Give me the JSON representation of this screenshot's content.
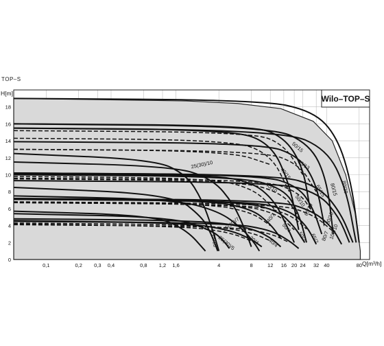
{
  "header": {
    "label": "TOP–S"
  },
  "chart_data": {
    "type": "line",
    "title": "Wilo–TOP–S",
    "xlabel": "Q[m³/h]",
    "ylabel": "H[m]",
    "x_scale": "log",
    "xlim": [
      0.05,
      100
    ],
    "ylim": [
      0,
      20
    ],
    "grid": true,
    "x_ticks": [
      0.1,
      0.2,
      0.3,
      0.4,
      0.8,
      1.2,
      1.6,
      4,
      8,
      12,
      16,
      20,
      24,
      32,
      40,
      80
    ],
    "x_tick_labels": [
      "0,1",
      "0,2",
      "0,3",
      "0,4",
      "0,8",
      "1,2",
      "1,6",
      "4",
      "8",
      "12",
      "16",
      "20",
      "24",
      "32",
      "40",
      "80"
    ],
    "y_ticks": [
      0,
      2,
      4,
      6,
      8,
      10,
      12,
      14,
      16,
      18
    ],
    "envelope": {
      "x": [
        0.05,
        2,
        6,
        15,
        30,
        45,
        60,
        75,
        82
      ],
      "y": [
        19,
        18.7,
        18.4,
        17.8,
        16.3,
        14,
        10,
        5,
        1
      ]
    },
    "series": [
      {
        "name": "25(30)/13",
        "style": "solid",
        "x": [
          0.05,
          1.0,
          2.0,
          2.8,
          3.5,
          4.0
        ],
        "y": [
          12.5,
          11.8,
          10,
          7,
          3.5,
          1
        ]
      },
      {
        "name": "",
        "style": "solid",
        "x": [
          0.05,
          1.5,
          2.8,
          3.4,
          3.9
        ],
        "y": [
          8.5,
          7.7,
          5,
          3,
          1
        ]
      },
      {
        "name": "",
        "style": "solid",
        "x": [
          0.05,
          1.0,
          2.0,
          3.0
        ],
        "y": [
          5.7,
          5.2,
          3.5,
          1
        ]
      },
      {
        "name": "25(30)/10",
        "style": "solid",
        "x": [
          0.05,
          1.5,
          3.5,
          5.5,
          7.0,
          8.0
        ],
        "y": [
          11.5,
          11,
          9.5,
          6.5,
          3.5,
          1.5
        ]
      },
      {
        "name": "25(30)/7",
        "style": "solid",
        "x": [
          0.05,
          1.5,
          4.0,
          6.5,
          8.5,
          9.5
        ],
        "y": [
          7.5,
          7.1,
          5.7,
          3.7,
          2,
          1
        ]
      },
      {
        "name": "25(30)/5",
        "style": "solid",
        "x": [
          0.05,
          1.5,
          3.5,
          4.5,
          5.0
        ],
        "y": [
          5.4,
          5,
          3.4,
          2.1,
          1.3
        ]
      },
      {
        "name": "30/4",
        "style": "solid",
        "x": [
          0.05,
          2.0,
          5.0,
          8.0,
          10.0
        ],
        "y": [
          4.6,
          4.3,
          3.5,
          2.4,
          1.5
        ]
      },
      {
        "name": "",
        "style": "dashed",
        "x": [
          0.05,
          2.0,
          5.0,
          8.0
        ],
        "y": [
          4.2,
          3.9,
          3.2,
          2.2
        ]
      },
      {
        "name": "40/10",
        "style": "solid",
        "x": [
          0.05,
          3.0,
          8.0,
          13.0,
          17.0,
          20.0
        ],
        "y": [
          10.1,
          10,
          9.2,
          7,
          4,
          2
        ]
      },
      {
        "name": "",
        "style": "dashed",
        "x": [
          0.05,
          3.0,
          8.0,
          13.0
        ],
        "y": [
          9.8,
          9.6,
          8.5,
          6
        ]
      },
      {
        "name": "40/7",
        "style": "solid",
        "x": [
          0.05,
          3.0,
          8.0,
          12.0,
          15.0
        ],
        "y": [
          7.2,
          7,
          6,
          4.2,
          2.5
        ]
      },
      {
        "name": "",
        "style": "dashed",
        "x": [
          0.05,
          3.0,
          8.0,
          12.0
        ],
        "y": [
          6.8,
          6.6,
          5.6,
          4
        ]
      },
      {
        "name": "40/4",
        "style": "solid",
        "x": [
          0.05,
          3.0,
          8.0,
          12.0,
          15.0
        ],
        "y": [
          4.8,
          4.6,
          3.7,
          2.6,
          1.5
        ]
      },
      {
        "name": "",
        "style": "dashed",
        "x": [
          0.05,
          3.0,
          8.0,
          12.0
        ],
        "y": [
          4.3,
          4.1,
          3.2,
          2.2
        ]
      },
      {
        "name": "40/15",
        "style": "solid",
        "x": [
          0.05,
          5.0,
          12.0,
          18.0,
          22.0
        ],
        "y": [
          15.5,
          15.3,
          13.8,
          9,
          3.5
        ]
      },
      {
        "name": "",
        "style": "dashed",
        "x": [
          0.05,
          5.0,
          12.0,
          18.0
        ],
        "y": [
          14.3,
          14.1,
          12.5,
          8
        ]
      },
      {
        "name": "",
        "style": "dashed",
        "x": [
          0.05,
          5.0,
          12.0
        ],
        "y": [
          13,
          12.8,
          11.2
        ]
      },
      {
        "name": "50/10",
        "style": "solid",
        "x": [
          0.05,
          6.0,
          16.0,
          22.0,
          26.0
        ],
        "y": [
          10,
          9.8,
          8.4,
          5.5,
          2
        ]
      },
      {
        "name": "",
        "style": "dashed",
        "x": [
          0.05,
          6.0,
          16.0,
          22.0
        ],
        "y": [
          9.5,
          9.3,
          7.8,
          5
        ]
      },
      {
        "name": "50/4",
        "style": "solid",
        "x": [
          0.05,
          5.0,
          12.0,
          18.0,
          22.0
        ],
        "y": [
          4.5,
          4.3,
          3.5,
          2.2,
          1.3
        ]
      },
      {
        "name": "",
        "style": "dashed",
        "x": [
          0.05,
          5.0,
          12.0,
          18.0
        ],
        "y": [
          4.1,
          3.9,
          3.1,
          2
        ]
      },
      {
        "name": "50/7",
        "style": "solid",
        "x": [
          0.05,
          6.0,
          14.0,
          20.0,
          25.0
        ],
        "y": [
          7.1,
          6.9,
          5.8,
          3.9,
          2
        ]
      },
      {
        "name": "",
        "style": "dashed",
        "x": [
          0.05,
          6.0,
          14.0,
          20.0
        ],
        "y": [
          6.7,
          6.5,
          5.4,
          3.5
        ]
      },
      {
        "name": "50/15",
        "style": "solid",
        "x": [
          0.05,
          8.0,
          16.0,
          24.0,
          28.0
        ],
        "y": [
          16,
          15.8,
          14.5,
          11,
          6
        ]
      },
      {
        "name": "",
        "style": "dashed",
        "x": [
          0.05,
          8.0,
          16.0,
          24.0
        ],
        "y": [
          15.2,
          15,
          13.6,
          10
        ]
      },
      {
        "name": "65/13",
        "style": "solid",
        "x": [
          0.05,
          10.0,
          22.0,
          32.0,
          38.0
        ],
        "y": [
          13.9,
          13.7,
          12.2,
          9,
          4
        ]
      },
      {
        "name": "",
        "style": "dashed",
        "x": [
          0.05,
          10.0,
          22.0,
          32.0
        ],
        "y": [
          13,
          12.8,
          11.3,
          8
        ]
      },
      {
        "name": "65/15",
        "style": "solid",
        "x": [
          0.05,
          12.0,
          28.0,
          40.0,
          46.0
        ],
        "y": [
          16,
          15.7,
          13.6,
          9.5,
          3
        ]
      },
      {
        "name": "65/10",
        "style": "solid",
        "x": [
          0.05,
          10.0,
          22.0,
          30.0,
          36.0
        ],
        "y": [
          10.2,
          10,
          8.6,
          6,
          3
        ]
      },
      {
        "name": "",
        "style": "dashed",
        "x": [
          0.05,
          10.0,
          22.0,
          30.0
        ],
        "y": [
          9.6,
          9.4,
          8,
          5.5
        ]
      },
      {
        "name": "65/7",
        "style": "solid",
        "x": [
          0.05,
          8.0,
          18.0,
          26.0,
          32.0
        ],
        "y": [
          7.1,
          6.9,
          5.8,
          4,
          1.8
        ]
      },
      {
        "name": "",
        "style": "dashed",
        "x": [
          0.05,
          8.0,
          18.0,
          26.0
        ],
        "y": [
          6.7,
          6.5,
          5.4,
          3.6
        ]
      },
      {
        "name": "80/15",
        "style": "solid",
        "x": [
          0.05,
          16.0,
          40.0,
          60.0,
          75.0
        ],
        "y": [
          15.5,
          15.2,
          13,
          8.5,
          2
        ]
      },
      {
        "name": "80/10",
        "style": "solid",
        "x": [
          0.05,
          14.0,
          34.0,
          54.0,
          70.0
        ],
        "y": [
          10.2,
          10,
          8.6,
          5.5,
          2
        ]
      },
      {
        "name": "100/10",
        "style": "solid",
        "x": [
          0.05,
          14.0,
          34.0,
          52.0,
          65.0
        ],
        "y": [
          9.3,
          9.1,
          7.8,
          5,
          2
        ]
      },
      {
        "name": "80/7",
        "style": "solid",
        "x": [
          0.05,
          14.0,
          30.0,
          45.0,
          55.0
        ],
        "y": [
          7.2,
          7,
          5.7,
          3.8,
          1.8
        ]
      },
      {
        "name": "",
        "style": "dashed",
        "x": [
          0.05,
          14.0,
          30.0,
          45.0
        ],
        "y": [
          6.8,
          6.6,
          5.3,
          3.4
        ]
      },
      {
        "name": "80/20",
        "style": "solid",
        "x": [
          0.05,
          10.0,
          30.0,
          50.0,
          68.0,
          80.0
        ],
        "y": [
          19,
          18.8,
          17.5,
          14.5,
          9,
          2
        ]
      }
    ],
    "labels": [
      {
        "text": "25/13",
        "x": 3.5,
        "y": 2.2,
        "rotate": 80
      },
      {
        "text": "25(30)/5",
        "x": 4.6,
        "y": 1.8,
        "rotate": 40
      },
      {
        "text": "30/4",
        "x": 8.3,
        "y": 2.1,
        "rotate": 40
      },
      {
        "text": "40/4",
        "x": 12.5,
        "y": 1.8,
        "rotate": 40
      },
      {
        "text": "25(30)/7",
        "x": 5.3,
        "y": 4.0,
        "rotate": -38
      },
      {
        "text": "40/7",
        "x": 12.5,
        "y": 4.8,
        "rotate": -50
      },
      {
        "text": "50/4",
        "x": 16.5,
        "y": 3.6,
        "rotate": 50
      },
      {
        "text": "50/7",
        "x": 23.0,
        "y": 2.6,
        "rotate": 60
      },
      {
        "text": "65/7",
        "x": 30.0,
        "y": 2.4,
        "rotate": 65
      },
      {
        "text": "80/7",
        "x": 40.0,
        "y": 2.7,
        "rotate": -70
      },
      {
        "text": "25(30)/10",
        "x": 2.8,
        "y": 11.0,
        "rotate": -12
      },
      {
        "text": "40/10",
        "x": 12.0,
        "y": 8.3,
        "rotate": 38
      },
      {
        "text": "40/15",
        "x": 16.2,
        "y": 10.0,
        "rotate": 52
      },
      {
        "text": "50/10",
        "x": 22.0,
        "y": 6.8,
        "rotate": 55
      },
      {
        "text": "65/10",
        "x": 28.0,
        "y": 5.8,
        "rotate": -65
      },
      {
        "text": "50/15",
        "x": 21.0,
        "y": 13.1,
        "rotate": 40
      },
      {
        "text": "65/13",
        "x": 24.0,
        "y": 11.0,
        "rotate": 35
      },
      {
        "text": "65/15",
        "x": 34.0,
        "y": 8.0,
        "rotate": 60
      },
      {
        "text": "80/15",
        "x": 45.0,
        "y": 8.2,
        "rotate": 75
      },
      {
        "text": "80/20",
        "x": 57.0,
        "y": 8.5,
        "rotate": 80
      },
      {
        "text": "80/10",
        "x": 44.0,
        "y": 4.8,
        "rotate": -70
      },
      {
        "text": "100/10",
        "x": 48.0,
        "y": 3.2,
        "rotate": -70
      }
    ]
  }
}
